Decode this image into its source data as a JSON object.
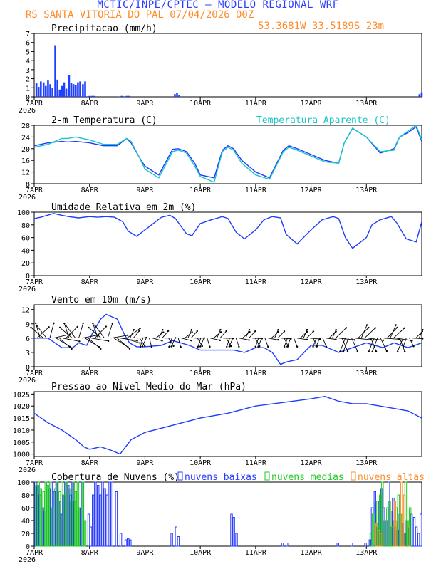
{
  "header": {
    "title": "MCTIC/INPE/CPTEC – MODELO REGIONAL WRF",
    "station": "RS SANTA VITORIA DO PAL    07/04/2026 00Z",
    "coords": "53.3681W 33.5189S 23m"
  },
  "colors": {
    "header_title": "#2a3cff",
    "header_sub": "#ff8c2a",
    "line_blue": "#1e3cff",
    "line_cyan": "#19c6c6",
    "bar_blue": "#2040ff",
    "cloud_low": "#2a3cff",
    "cloud_mid": "#22cc22",
    "cloud_high": "#ff8c2a"
  },
  "x_ticks": [
    "7APR",
    "8APR",
    "9APR",
    "10APR",
    "11APR",
    "12APR",
    "13APR"
  ],
  "x_year": "2026",
  "chart_data": [
    {
      "id": "precip",
      "type": "bar",
      "title": "Precipitacao (mm/h)",
      "ylim": [
        0,
        7
      ],
      "yticks": [
        0,
        1,
        2,
        3,
        4,
        5,
        6,
        7
      ],
      "x": [
        0.04,
        0.08,
        0.12,
        0.17,
        0.21,
        0.25,
        0.29,
        0.33,
        0.38,
        0.42,
        0.46,
        0.5,
        0.54,
        0.58,
        0.63,
        0.67,
        0.71,
        0.75,
        0.79,
        0.83,
        0.88,
        0.92,
        1.0,
        1.04,
        1.08,
        1.54,
        1.58,
        1.67,
        1.71,
        2.54,
        2.58,
        2.62,
        6.96,
        7.0
      ],
      "values": [
        1.5,
        1.1,
        1.7,
        1.6,
        1.2,
        1.8,
        1.4,
        1.0,
        5.7,
        1.9,
        0.8,
        1.2,
        1.6,
        0.9,
        2.4,
        1.5,
        1.4,
        1.3,
        1.6,
        1.7,
        1.4,
        1.7,
        0.1,
        0.1,
        0.1,
        0.05,
        0.1,
        0.1,
        0.1,
        0.3,
        0.4,
        0.2,
        0.3,
        0.5
      ]
    },
    {
      "id": "temp",
      "type": "line",
      "title": "2-m Temperatura (C)",
      "legend": "Temperatura Aparente (C)",
      "ylim": [
        8,
        28
      ],
      "yticks": [
        8,
        12,
        16,
        20,
        24,
        28
      ],
      "series": [
        {
          "name": "",
          "x": [
            0,
            0.25,
            0.5,
            0.6,
            0.75,
            1.0,
            1.25,
            1.5,
            1.67,
            1.75,
            1.9,
            2.0,
            2.25,
            2.5,
            2.6,
            2.75,
            2.9,
            3.0,
            3.25,
            3.4,
            3.5,
            3.6,
            3.75,
            4.0,
            4.25,
            4.5,
            4.6,
            4.75,
            5.0,
            5.25,
            5.5,
            5.6,
            5.75,
            6.0,
            6.25,
            6.5,
            6.6,
            6.75,
            6.9,
            7.0
          ],
          "y": [
            21,
            22,
            22.5,
            22.3,
            22.5,
            22,
            21,
            21,
            23.5,
            22,
            17,
            14,
            11,
            19.8,
            20,
            19,
            15,
            11,
            10,
            19.5,
            21,
            20,
            16,
            12,
            10,
            19.5,
            21,
            20,
            18,
            16,
            15,
            22,
            27,
            24,
            18.5,
            20,
            24,
            25.5,
            27.5,
            22.5
          ]
        },
        {
          "name": "Temperatura Aparente (C)",
          "x": [
            0,
            0.25,
            0.5,
            0.6,
            0.75,
            1.0,
            1.25,
            1.5,
            1.67,
            1.75,
            1.9,
            2.0,
            2.25,
            2.5,
            2.6,
            2.75,
            2.9,
            3.0,
            3.25,
            3.4,
            3.5,
            3.6,
            3.75,
            4.0,
            4.25,
            4.5,
            4.6,
            4.75,
            5.0,
            5.25,
            5.5,
            5.6,
            5.75,
            6.0,
            6.25,
            6.5,
            6.6,
            6.75,
            6.9,
            7.0
          ],
          "y": [
            20.5,
            21.5,
            23.5,
            23.5,
            24,
            23,
            21.5,
            21.5,
            23.5,
            22.5,
            17,
            13,
            10,
            19,
            19.5,
            18.5,
            14,
            10.5,
            8.5,
            19,
            20.5,
            19.5,
            15,
            11,
            9.5,
            19,
            20.5,
            19.5,
            17.5,
            15.5,
            15,
            22,
            27,
            24,
            19,
            19.5,
            24,
            26,
            28,
            23
          ]
        }
      ]
    },
    {
      "id": "rh",
      "type": "line",
      "title": "Umidade Relativa em 2m (%)",
      "ylim": [
        0,
        100
      ],
      "yticks": [
        0,
        20,
        40,
        60,
        80,
        100
      ],
      "series": [
        {
          "name": "",
          "x": [
            0,
            0.12,
            0.35,
            0.5,
            0.62,
            0.8,
            1.0,
            1.15,
            1.3,
            1.45,
            1.6,
            1.7,
            1.85,
            2.0,
            2.3,
            2.45,
            2.55,
            2.75,
            2.85,
            3.0,
            3.2,
            3.4,
            3.5,
            3.65,
            3.8,
            4.0,
            4.15,
            4.3,
            4.45,
            4.55,
            4.75,
            5.0,
            5.2,
            5.4,
            5.5,
            5.62,
            5.75,
            6.0,
            6.1,
            6.25,
            6.45,
            6.55,
            6.72,
            6.9,
            7.0
          ],
          "y": [
            90,
            92,
            98,
            95,
            93,
            91,
            93,
            92,
            93,
            92,
            85,
            70,
            62,
            72,
            92,
            95,
            90,
            66,
            63,
            82,
            88,
            93,
            90,
            68,
            58,
            72,
            88,
            93,
            91,
            65,
            50,
            72,
            88,
            93,
            90,
            60,
            43,
            60,
            80,
            88,
            93,
            83,
            58,
            53,
            85
          ]
        }
      ]
    },
    {
      "id": "wind",
      "type": "line",
      "title": "Vento em 10m (m/s)",
      "ylim": [
        0,
        13
      ],
      "yticks": [
        0,
        3,
        6,
        9,
        12
      ],
      "series": [
        {
          "name": "",
          "x": [
            0,
            0.25,
            0.5,
            0.7,
            0.8,
            0.95,
            1.05,
            1.2,
            1.3,
            1.5,
            1.62,
            1.72,
            1.85,
            2.0,
            2.3,
            2.5,
            2.8,
            3.0,
            3.3,
            3.6,
            3.8,
            4.0,
            4.15,
            4.3,
            4.45,
            4.55,
            4.75,
            5.0,
            5.2,
            5.5,
            5.75,
            6.0,
            6.3,
            6.5,
            6.75,
            7.0
          ],
          "y": [
            6,
            6,
            4,
            4,
            5,
            4.5,
            7,
            10,
            11,
            10,
            7,
            5,
            4.2,
            4.2,
            4.5,
            5.5,
            4.5,
            3.5,
            3.5,
            3.5,
            3,
            4,
            4,
            3,
            0.5,
            1,
            1.5,
            4.5,
            4.5,
            3,
            4,
            5,
            4,
            5,
            4,
            5
          ]
        }
      ]
    },
    {
      "id": "pressure",
      "type": "line",
      "title": "Pressao ao Nivel Medio do Mar (hPa)",
      "ylim": [
        999,
        1026
      ],
      "yticks": [
        1000,
        1005,
        1010,
        1015,
        1020,
        1025
      ],
      "series": [
        {
          "name": "",
          "x": [
            0,
            0.25,
            0.5,
            0.75,
            0.9,
            1.0,
            1.2,
            1.4,
            1.55,
            1.75,
            2.0,
            2.5,
            3.0,
            3.5,
            4.0,
            4.5,
            5.0,
            5.25,
            5.5,
            5.75,
            6.0,
            6.5,
            6.75,
            7.0
          ],
          "y": [
            1017,
            1013,
            1010,
            1006,
            1003,
            1002,
            1003,
            1001.5,
            1000,
            1006,
            1009,
            1012,
            1015,
            1017,
            1020,
            1021.5,
            1023,
            1024,
            1022,
            1021,
            1021,
            1019,
            1018,
            1015
          ]
        }
      ]
    },
    {
      "id": "clouds",
      "type": "bar",
      "title": "Cobertura de Nuvens (%)",
      "legend": [
        "nuvens baixas",
        "nuvens medias",
        "nuvens altas"
      ],
      "ylim": [
        0,
        100
      ],
      "yticks": [
        0,
        20,
        40,
        60,
        80,
        100
      ],
      "series": [
        {
          "name": "nuvens baixas",
          "x": [
            0.04,
            0.08,
            0.12,
            0.17,
            0.21,
            0.25,
            0.29,
            0.33,
            0.38,
            0.42,
            0.46,
            0.5,
            0.54,
            0.58,
            0.63,
            0.67,
            0.71,
            0.75,
            0.79,
            0.83,
            0.88,
            0.92,
            1.0,
            1.04,
            1.08,
            1.12,
            1.17,
            1.21,
            1.25,
            1.29,
            1.33,
            1.38,
            1.42,
            1.5,
            1.58,
            1.67,
            1.71,
            1.75,
            2.5,
            2.58,
            2.62,
            3.58,
            3.62,
            3.67,
            4.5,
            4.58,
            5.5,
            5.75,
            6.0,
            6.08,
            6.12,
            6.17,
            6.21,
            6.25,
            6.29,
            6.33,
            6.38,
            6.42,
            6.46,
            6.5,
            6.54,
            6.58,
            6.62,
            6.67,
            6.71,
            6.75,
            6.79,
            6.83,
            6.88,
            6.92,
            6.96,
            7.0
          ],
          "values": [
            100,
            95,
            80,
            60,
            55,
            100,
            90,
            100,
            85,
            100,
            70,
            50,
            80,
            100,
            95,
            80,
            100,
            70,
            55,
            60,
            100,
            100,
            50,
            30,
            80,
            100,
            95,
            80,
            100,
            90,
            80,
            100,
            100,
            85,
            20,
            10,
            12,
            10,
            20,
            30,
            15,
            50,
            45,
            20,
            5,
            5,
            5,
            5,
            5,
            10,
            60,
            85,
            30,
            70,
            90,
            60,
            40,
            100,
            55,
            75,
            30,
            25,
            50,
            35,
            20,
            40,
            30,
            50,
            45,
            30,
            20,
            50
          ]
        },
        {
          "name": "nuvens medias",
          "x": [
            0.04,
            0.08,
            0.12,
            0.17,
            0.21,
            0.25,
            0.29,
            0.33,
            0.38,
            0.42,
            0.46,
            0.5,
            0.54,
            0.58,
            0.63,
            0.67,
            0.71,
            0.75,
            0.79,
            0.83,
            0.88,
            0.92,
            6.08,
            6.12,
            6.17,
            6.21,
            6.25,
            6.29,
            6.33,
            6.38,
            6.42,
            6.46,
            6.5,
            6.54,
            6.58,
            6.62,
            6.67,
            6.71,
            6.75,
            6.79
          ],
          "values": [
            95,
            100,
            90,
            85,
            100,
            95,
            100,
            60,
            90,
            100,
            85,
            100,
            80,
            100,
            90,
            70,
            100,
            85,
            100,
            60,
            100,
            40,
            20,
            50,
            70,
            30,
            80,
            100,
            40,
            60,
            70,
            30,
            40,
            60,
            80,
            50,
            20,
            100,
            40,
            60
          ]
        },
        {
          "name": "nuvens altas",
          "x": [
            6.17,
            6.21,
            6.25,
            6.5,
            6.54,
            6.62,
            6.67,
            6.75
          ],
          "values": [
            35,
            25,
            20,
            70,
            40,
            100,
            80,
            30
          ]
        }
      ]
    }
  ]
}
